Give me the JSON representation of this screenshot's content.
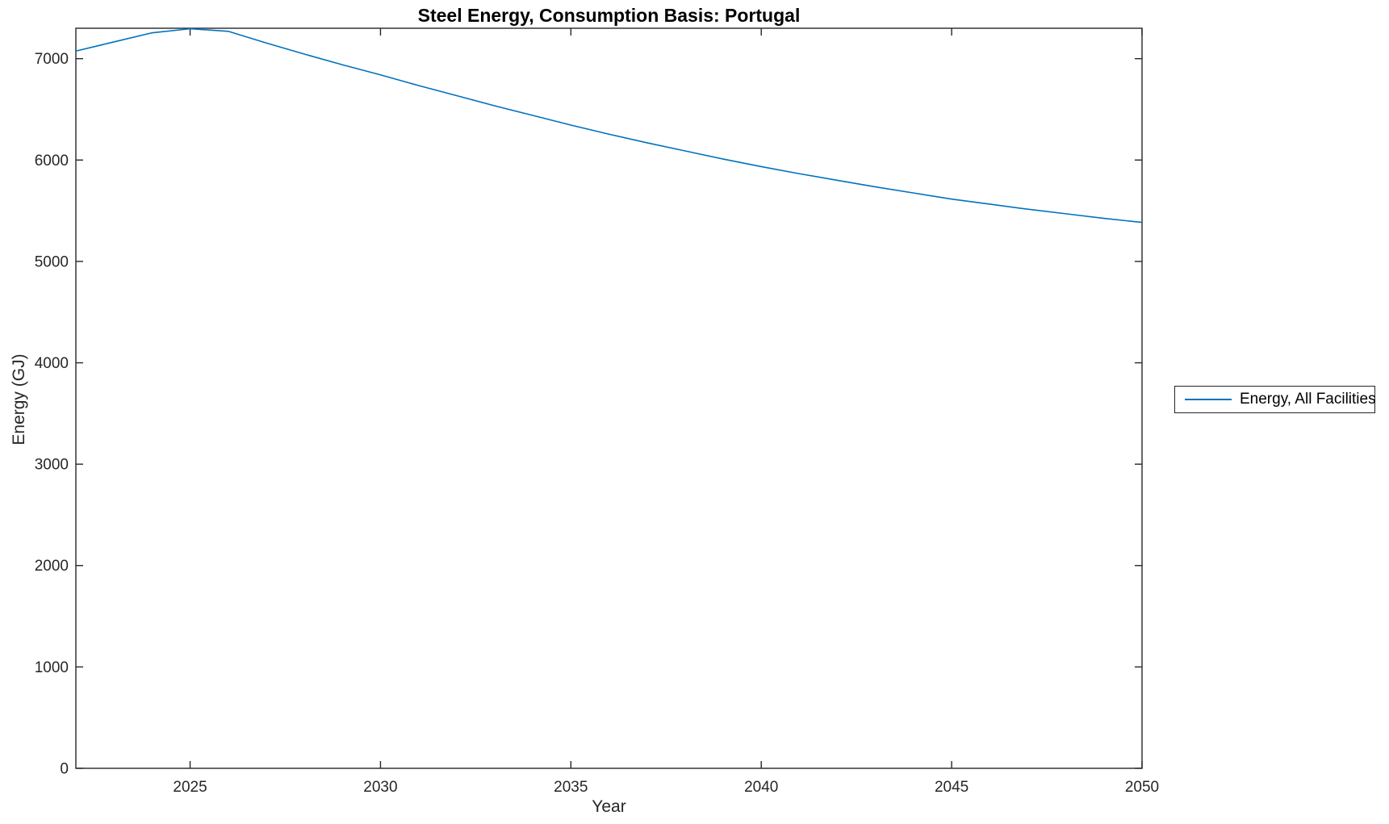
{
  "chart_data": {
    "type": "line",
    "title": "Steel Energy, Consumption Basis: Portugal",
    "xlabel": "Year",
    "ylabel": "Energy (GJ)",
    "xlim": [
      2022,
      2050
    ],
    "ylim": [
      0,
      7300
    ],
    "xticks": [
      2025,
      2030,
      2035,
      2040,
      2045,
      2050
    ],
    "yticks": [
      0,
      1000,
      2000,
      3000,
      4000,
      5000,
      6000,
      7000
    ],
    "grid": false,
    "box": true,
    "tick_direction": "in",
    "axis_color": "#262626",
    "background": "#ffffff",
    "legend": {
      "position": "outside-right",
      "entries": [
        "Energy, All Facilities"
      ]
    },
    "series": [
      {
        "name": "Energy, All Facilities",
        "color": "#0072BD",
        "x": [
          2022,
          2023,
          2024,
          2025,
          2026,
          2027,
          2028,
          2029,
          2030,
          2031,
          2032,
          2033,
          2034,
          2035,
          2036,
          2037,
          2038,
          2039,
          2040,
          2041,
          2042,
          2043,
          2044,
          2045,
          2046,
          2047,
          2048,
          2049,
          2050
        ],
        "values": [
          7075,
          7165,
          7255,
          7295,
          7270,
          7155,
          7045,
          6940,
          6840,
          6735,
          6635,
          6535,
          6440,
          6345,
          6255,
          6170,
          6090,
          6010,
          5935,
          5865,
          5800,
          5735,
          5675,
          5615,
          5565,
          5515,
          5470,
          5425,
          5385
        ]
      }
    ]
  }
}
